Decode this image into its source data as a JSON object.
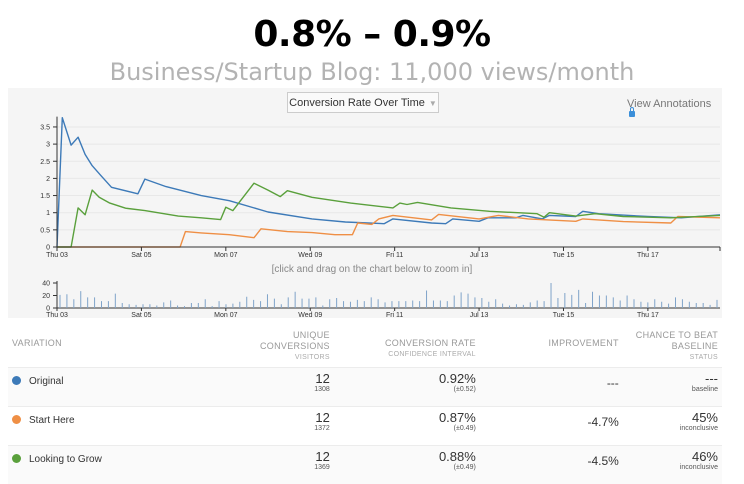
{
  "slide": {
    "title": "0.8% – 0.9%",
    "subtitle": "Business/Startup Blog: 11,000 views/month"
  },
  "toolbar": {
    "chart_select": "Conversion Rate Over Time",
    "view_annotations": "View Annotations",
    "zoom_hint": "[click and drag on the chart below to zoom in]"
  },
  "colors": {
    "Original": "#3d7ab8",
    "Start Here": "#ef8f45",
    "Looking to Grow": "#5aa03c",
    "bars": "#7fa3c9"
  },
  "chart_data": [
    {
      "type": "line",
      "title": "Conversion Rate Over Time",
      "x_format": "MM-DD HH:MM",
      "xlim": [
        "07-03 00:00",
        "07-18 17:00"
      ],
      "ylim": [
        0,
        3.8
      ],
      "x_ticks": [
        {
          "at": "07-03 00:00",
          "label": "Thu 03"
        },
        {
          "at": "07-05 00:00",
          "label": "Sat 05"
        },
        {
          "at": "07-07 00:00",
          "label": "Mon 07"
        },
        {
          "at": "07-09 00:00",
          "label": "Wed 09"
        },
        {
          "at": "07-11 00:00",
          "label": "Fri 11"
        },
        {
          "at": "07-13 00:00",
          "label": "Jul 13"
        },
        {
          "at": "07-15 00:00",
          "label": "Tue 15"
        },
        {
          "at": "07-17 00:00",
          "label": "Thu 17"
        }
      ],
      "y_ticks": [
        "0",
        "0.5",
        "1",
        "1.5",
        "2",
        "2.5",
        "3",
        "3.5"
      ],
      "grid": true,
      "series": [
        {
          "name": "Original",
          "points": [
            [
              "07-03 00:00",
              0
            ],
            [
              "07-03 03:00",
              3.77
            ],
            [
              "07-03 08:00",
              2.97
            ],
            [
              "07-03 12:00",
              3.2
            ],
            [
              "07-03 16:00",
              2.7
            ],
            [
              "07-03 20:00",
              2.37
            ],
            [
              "07-04 01:00",
              2.08
            ],
            [
              "07-04 07:00",
              1.74
            ],
            [
              "07-04 22:00",
              1.55
            ],
            [
              "07-05 02:00",
              1.98
            ],
            [
              "07-05 14:00",
              1.76
            ],
            [
              "07-06 10:00",
              1.5
            ],
            [
              "07-07 02:00",
              1.35
            ],
            [
              "07-08 00:00",
              1.02
            ],
            [
              "07-09 01:00",
              0.82
            ],
            [
              "07-09 20:00",
              0.73
            ],
            [
              "07-10 18:00",
              0.68
            ],
            [
              "07-10 23:00",
              0.82
            ],
            [
              "07-11 21:00",
              0.7
            ],
            [
              "07-12 05:00",
              0.68
            ],
            [
              "07-12 09:00",
              0.82
            ],
            [
              "07-13 00:00",
              0.75
            ],
            [
              "07-13 05:00",
              0.85
            ],
            [
              "07-13 21:00",
              0.85
            ],
            [
              "07-14 01:00",
              0.92
            ],
            [
              "07-14 12:00",
              0.82
            ],
            [
              "07-14 16:00",
              0.92
            ],
            [
              "07-15 07:00",
              0.89
            ],
            [
              "07-15 11:00",
              1.04
            ],
            [
              "07-15 20:00",
              0.97
            ],
            [
              "07-17 00:00",
              0.89
            ],
            [
              "07-17 19:00",
              0.85
            ],
            [
              "07-18 17:00",
              0.94
            ]
          ]
        },
        {
          "name": "Start Here",
          "points": [
            [
              "07-03 00:00",
              0
            ],
            [
              "07-05 22:00",
              0
            ],
            [
              "07-06 01:00",
              0.45
            ],
            [
              "07-06 10:00",
              0.41
            ],
            [
              "07-07 02:00",
              0.36
            ],
            [
              "07-07 16:00",
              0.27
            ],
            [
              "07-07 20:00",
              0.53
            ],
            [
              "07-08 11:00",
              0.45
            ],
            [
              "07-09 01:00",
              0.42
            ],
            [
              "07-09 14:00",
              0.36
            ],
            [
              "07-10 00:00",
              0.36
            ],
            [
              "07-10 03:00",
              0.7
            ],
            [
              "07-10 11:00",
              0.66
            ],
            [
              "07-10 15:00",
              0.82
            ],
            [
              "07-10 23:00",
              0.92
            ],
            [
              "07-11 21:00",
              0.79
            ],
            [
              "07-12 01:00",
              0.95
            ],
            [
              "07-13 00:00",
              0.82
            ],
            [
              "07-13 11:00",
              0.92
            ],
            [
              "07-14 04:00",
              0.82
            ],
            [
              "07-15 07:00",
              0.75
            ],
            [
              "07-15 11:00",
              0.82
            ],
            [
              "07-16 10:00",
              0.74
            ],
            [
              "07-17 13:00",
              0.7
            ],
            [
              "07-17 17:00",
              0.89
            ],
            [
              "07-18 17:00",
              0.85
            ]
          ]
        },
        {
          "name": "Looking to Grow",
          "points": [
            [
              "07-03 00:00",
              0
            ],
            [
              "07-03 08:00",
              0
            ],
            [
              "07-03 12:00",
              1.14
            ],
            [
              "07-03 16:00",
              0.94
            ],
            [
              "07-03 20:00",
              1.66
            ],
            [
              "07-04 00:00",
              1.45
            ],
            [
              "07-04 06:00",
              1.28
            ],
            [
              "07-04 15:00",
              1.13
            ],
            [
              "07-05 02:00",
              1.06
            ],
            [
              "07-05 21:00",
              0.9
            ],
            [
              "07-06 10:00",
              0.85
            ],
            [
              "07-06 21:00",
              0.8
            ],
            [
              "07-07 00:00",
              1.16
            ],
            [
              "07-07 04:00",
              1.06
            ],
            [
              "07-07 16:00",
              1.86
            ],
            [
              "07-08 00:00",
              1.66
            ],
            [
              "07-08 07:00",
              1.47
            ],
            [
              "07-08 11:00",
              1.64
            ],
            [
              "07-09 01:00",
              1.45
            ],
            [
              "07-09 23:00",
              1.28
            ],
            [
              "07-10 23:00",
              1.14
            ],
            [
              "07-11 03:00",
              1.28
            ],
            [
              "07-11 07:00",
              1.24
            ],
            [
              "07-11 13:00",
              1.3
            ],
            [
              "07-12 08:00",
              1.14
            ],
            [
              "07-13 06:00",
              1.04
            ],
            [
              "07-14 09:00",
              0.97
            ],
            [
              "07-14 13:00",
              0.87
            ],
            [
              "07-14 16:00",
              1.0
            ],
            [
              "07-15 07:00",
              0.9
            ],
            [
              "07-15 18:00",
              0.97
            ],
            [
              "07-16 10:00",
              0.89
            ],
            [
              "07-17 13:00",
              0.85
            ],
            [
              "07-18 17:00",
              0.92
            ]
          ]
        }
      ]
    },
    {
      "type": "bar",
      "ylim": [
        0,
        40
      ],
      "y_ticks": [
        "0",
        "20",
        "40"
      ],
      "values": [
        21,
        22,
        14,
        27,
        17,
        17,
        11,
        11,
        23,
        8,
        6,
        5,
        6,
        6,
        4,
        9,
        12,
        4,
        3,
        8,
        8,
        14,
        3,
        11,
        6,
        7,
        10,
        18,
        13,
        11,
        22,
        15,
        6,
        17,
        26,
        15,
        15,
        17,
        4,
        14,
        16,
        11,
        10,
        13,
        11,
        17,
        14,
        9,
        11,
        11,
        11,
        12,
        11,
        28,
        12,
        12,
        11,
        20,
        25,
        23,
        17,
        16,
        10,
        14,
        7,
        4,
        6,
        5,
        9,
        12,
        11,
        40,
        16,
        24,
        21,
        29,
        8,
        26,
        20,
        20,
        17,
        12,
        20,
        14,
        10,
        9,
        14,
        10,
        7,
        17,
        14,
        10,
        8,
        8,
        5,
        13
      ]
    }
  ],
  "table": {
    "headers": {
      "variation": "VARIATION",
      "unique_1": "UNIQUE",
      "unique_2": "CONVERSIONS",
      "unique_sub": "VISITORS",
      "rate": "CONVERSION RATE",
      "rate_sub": "CONFIDENCE INTERVAL",
      "improvement": "IMPROVEMENT",
      "chance_1": "CHANCE TO BEAT",
      "chance_2": "BASELINE",
      "chance_sub": "STATUS"
    },
    "rows": [
      {
        "name": "Original",
        "conversions": "12",
        "visitors": "1308",
        "rate": "0.92%",
        "interval": "(±0.52)",
        "improvement": "---",
        "chance": "---",
        "status": "baseline"
      },
      {
        "name": "Start Here",
        "conversions": "12",
        "visitors": "1372",
        "rate": "0.87%",
        "interval": "(±0.49)",
        "improvement": "-4.7%",
        "chance": "45%",
        "status": "inconclusive"
      },
      {
        "name": "Looking to Grow",
        "conversions": "12",
        "visitors": "1369",
        "rate": "0.88%",
        "interval": "(±0.49)",
        "improvement": "-4.5%",
        "chance": "46%",
        "status": "inconclusive"
      }
    ]
  }
}
